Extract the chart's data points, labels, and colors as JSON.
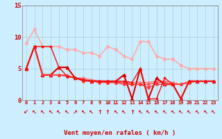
{
  "title": "",
  "xlabel": "Vent moyen/en rafales ( km/h )",
  "bg_color": "#cceeff",
  "grid_color": "#aacccc",
  "xlim": [
    -0.5,
    23.5
  ],
  "ylim": [
    0,
    15
  ],
  "yticks": [
    0,
    5,
    10,
    15
  ],
  "xticks": [
    0,
    1,
    2,
    3,
    4,
    5,
    6,
    7,
    8,
    9,
    10,
    11,
    12,
    13,
    14,
    15,
    16,
    17,
    18,
    19,
    20,
    21,
    22,
    23
  ],
  "lines": [
    {
      "x": [
        0,
        1,
        2,
        3,
        4,
        5,
        6,
        7,
        8,
        9,
        10,
        11,
        12,
        13,
        14,
        15,
        16,
        17,
        18,
        19,
        20,
        21,
        22,
        23
      ],
      "y": [
        9.0,
        11.2,
        8.5,
        8.5,
        8.5,
        8.0,
        8.0,
        7.5,
        7.5,
        7.0,
        8.5,
        8.0,
        7.0,
        6.5,
        9.3,
        9.3,
        7.0,
        6.5,
        6.5,
        5.5,
        5.0,
        5.0,
        5.0,
        5.0
      ],
      "color": "#ffaaaa",
      "lw": 1.2,
      "marker": "o",
      "ms": 2.5
    },
    {
      "x": [
        0,
        1,
        2,
        3,
        4,
        5,
        6,
        7,
        8,
        9,
        10,
        11,
        12,
        13,
        14,
        15,
        16,
        17,
        18,
        19,
        20,
        21,
        22,
        23
      ],
      "y": [
        5.0,
        8.5,
        4.0,
        4.0,
        4.0,
        4.0,
        3.5,
        3.5,
        3.2,
        3.0,
        3.0,
        3.0,
        2.8,
        2.8,
        2.8,
        2.8,
        3.0,
        3.0,
        2.8,
        2.5,
        3.0,
        3.0,
        3.0,
        3.0
      ],
      "color": "#ff7777",
      "lw": 1.1,
      "marker": "o",
      "ms": 2.0
    },
    {
      "x": [
        0,
        1,
        2,
        3,
        4,
        5,
        6,
        7,
        8,
        9,
        10,
        11,
        12,
        13,
        14,
        15,
        16,
        17,
        18,
        19,
        20,
        21,
        22,
        23
      ],
      "y": [
        5.0,
        8.5,
        4.0,
        4.0,
        4.0,
        3.8,
        3.5,
        3.2,
        3.0,
        3.0,
        2.8,
        2.8,
        2.8,
        2.5,
        2.5,
        2.5,
        2.8,
        2.8,
        2.5,
        2.5,
        2.8,
        3.0,
        3.0,
        3.0
      ],
      "color": "#ff5555",
      "lw": 1.1,
      "marker": "^",
      "ms": 2.5
    },
    {
      "x": [
        0,
        1,
        2,
        3,
        4,
        5,
        6,
        7,
        8,
        9,
        10,
        11,
        12,
        13,
        14,
        15,
        16,
        17,
        18,
        19,
        20,
        21,
        22,
        23
      ],
      "y": [
        5.0,
        8.5,
        4.0,
        4.0,
        5.2,
        5.2,
        3.5,
        3.2,
        3.0,
        3.0,
        3.0,
        3.0,
        4.0,
        0.2,
        5.0,
        0.2,
        3.5,
        2.5,
        2.5,
        0.2,
        3.0,
        3.0,
        3.0,
        3.0
      ],
      "color": "#dd0000",
      "lw": 1.5,
      "marker": "^",
      "ms": 3.0
    },
    {
      "x": [
        0,
        1,
        2,
        3,
        4,
        5,
        6,
        7,
        8,
        9,
        10,
        11,
        12,
        13,
        14,
        15,
        16,
        17,
        18,
        19,
        20,
        21,
        22,
        23
      ],
      "y": [
        5.0,
        8.5,
        4.0,
        4.0,
        4.0,
        3.8,
        3.5,
        3.0,
        3.0,
        2.8,
        2.8,
        2.8,
        2.5,
        2.5,
        2.5,
        2.0,
        2.5,
        2.5,
        2.5,
        2.5,
        2.8,
        3.0,
        3.0,
        3.0
      ],
      "color": "#ff3333",
      "lw": 1.0,
      "marker": "D",
      "ms": 2.0
    },
    {
      "x": [
        0,
        1,
        2,
        3,
        4,
        5,
        6,
        7,
        8,
        9,
        10,
        11,
        12,
        13,
        14,
        15,
        16,
        17,
        18,
        19,
        20,
        21,
        22,
        23
      ],
      "y": [
        5.0,
        8.5,
        8.5,
        8.5,
        5.2,
        3.8,
        3.5,
        3.2,
        3.0,
        3.0,
        3.0,
        3.0,
        3.0,
        2.8,
        5.0,
        0.2,
        0.2,
        3.5,
        2.5,
        0.2,
        3.0,
        3.0,
        3.0,
        3.0
      ],
      "color": "#ee1111",
      "lw": 1.0,
      "marker": "s",
      "ms": 2.0
    }
  ],
  "arrow_chars": [
    "↙",
    "↖",
    "↖",
    "↖",
    "↖",
    "↖",
    "↗",
    "↖",
    "↖",
    "↑",
    "↑",
    "↖",
    "↖",
    "↑",
    "↖",
    "↖",
    "↖",
    "↖",
    "↖",
    "↖",
    "↖",
    "↖",
    "↖",
    "↖"
  ]
}
